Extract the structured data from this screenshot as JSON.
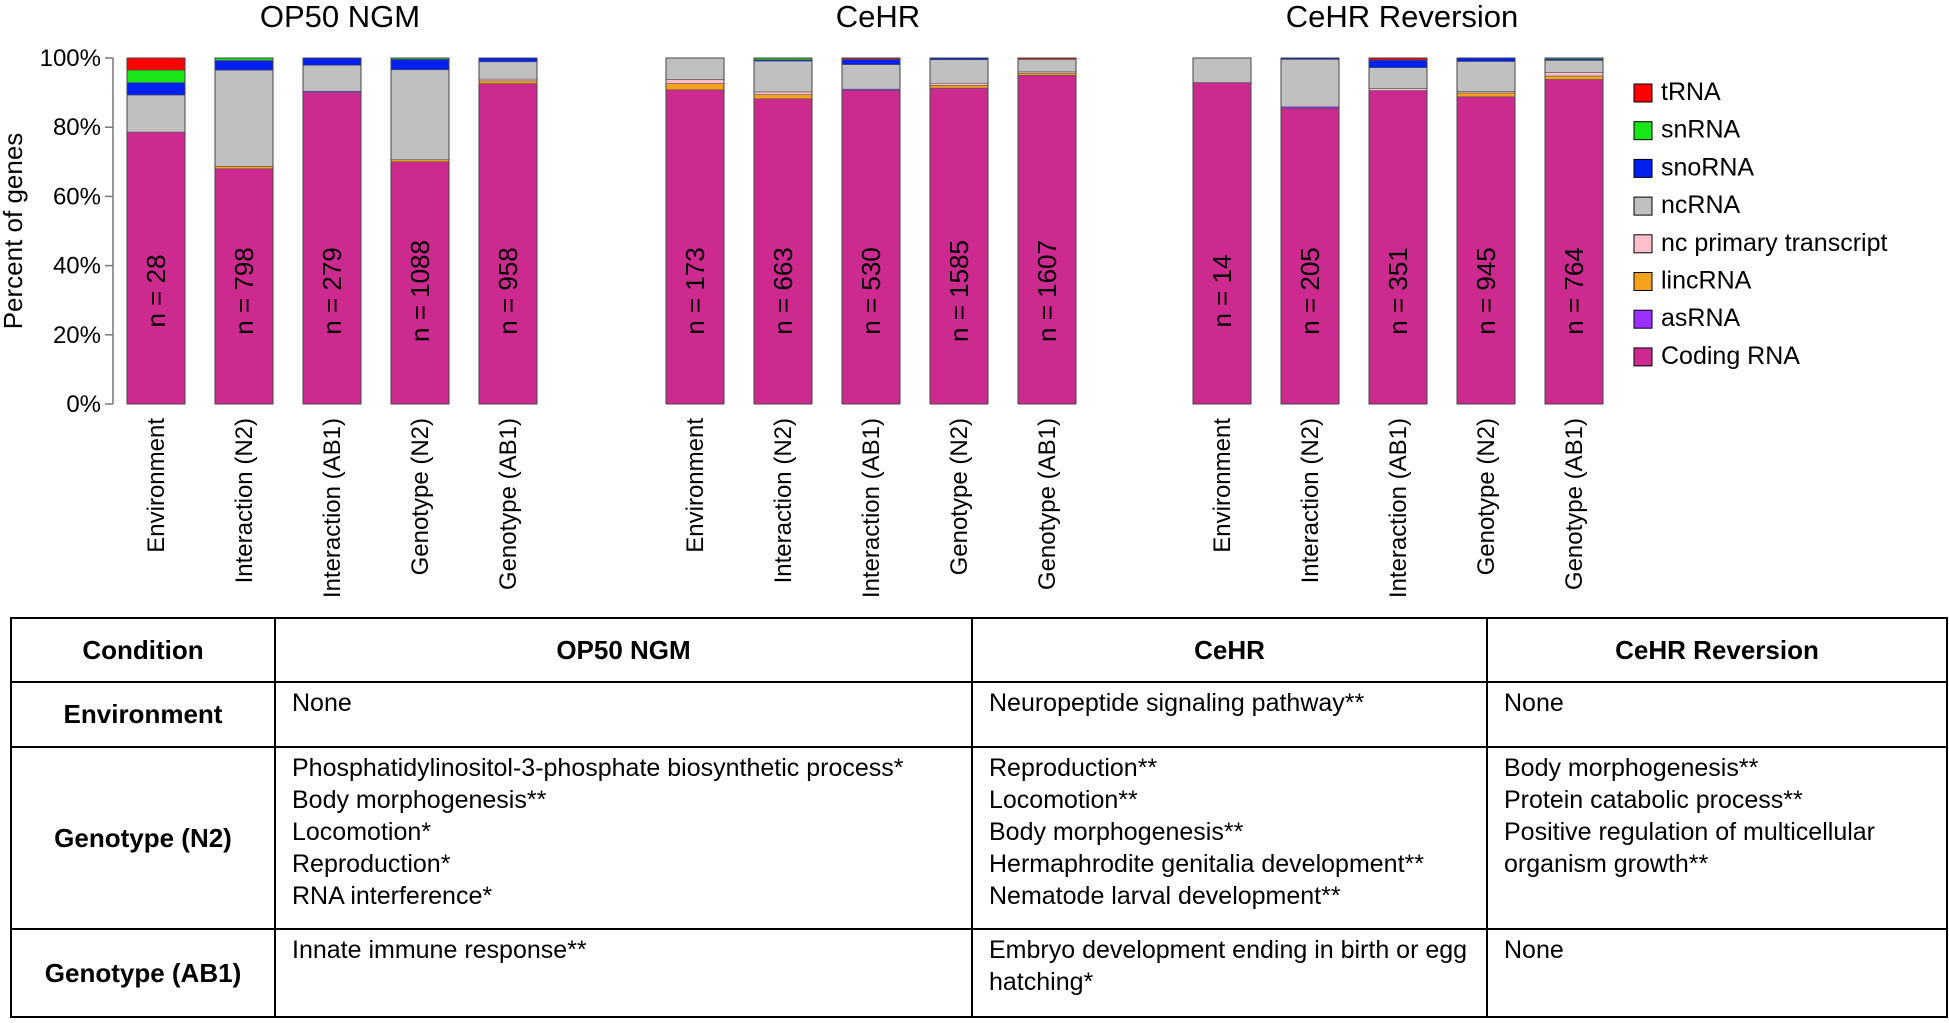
{
  "chart_data": {
    "type": "bar",
    "stacked": true,
    "ylabel": "Percent of genes",
    "ylim": [
      0,
      100
    ],
    "yticks": [
      "0%",
      "20%",
      "40%",
      "60%",
      "80%",
      "100%"
    ],
    "categories": [
      "Environment",
      "Interaction (N2)",
      "Interaction (AB1)",
      "Genotype (N2)",
      "Genotype (AB1)"
    ],
    "legend": [
      {
        "name": "tRNA",
        "color": "#ff0000"
      },
      {
        "name": "snRNA",
        "color": "#19e619"
      },
      {
        "name": "snoRNA",
        "color": "#0020f0"
      },
      {
        "name": "ncRNA",
        "color": "#c0c0c0"
      },
      {
        "name": "nc primary transcript",
        "color": "#ffc0cb"
      },
      {
        "name": "lincRNA",
        "color": "#f7a21c"
      },
      {
        "name": "asRNA",
        "color": "#9b30ff"
      },
      {
        "name": "Coding RNA",
        "color": "#cc2a8f"
      }
    ],
    "stack_order": [
      "Coding RNA",
      "asRNA",
      "lincRNA",
      "nc primary transcript",
      "ncRNA",
      "snoRNA",
      "snRNA",
      "tRNA"
    ],
    "panels": [
      {
        "title": "OP50 NGM",
        "bars": [
          {
            "category": "Environment",
            "n": "n = 28",
            "segments": {
              "Coding RNA": 78.6,
              "ncRNA": 10.7,
              "snoRNA": 3.6,
              "snRNA": 3.6,
              "tRNA": 3.5
            }
          },
          {
            "category": "Interaction (N2)",
            "n": "n = 798",
            "segments": {
              "Coding RNA": 68.0,
              "lincRNA": 0.7,
              "ncRNA": 27.8,
              "snoRNA": 2.8,
              "snRNA": 0.7
            }
          },
          {
            "category": "Interaction (AB1)",
            "n": "n = 279",
            "segments": {
              "Coding RNA": 90.0,
              "asRNA": 0.4,
              "ncRNA": 7.5,
              "snoRNA": 2.1
            }
          },
          {
            "category": "Genotype (N2)",
            "n": "n = 1088",
            "segments": {
              "Coding RNA": 70.0,
              "lincRNA": 0.6,
              "ncRNA": 26.0,
              "snoRNA": 3.0,
              "snRNA": 0.4
            }
          },
          {
            "category": "Genotype (AB1)",
            "n": "n = 958",
            "segments": {
              "Coding RNA": 92.6,
              "lincRNA": 0.8,
              "nc primary transcript": 0.5,
              "ncRNA": 5.0,
              "snoRNA": 1.1
            }
          }
        ]
      },
      {
        "title": "CeHR",
        "bars": [
          {
            "category": "Environment",
            "n": "n = 173",
            "segments": {
              "Coding RNA": 90.8,
              "lincRNA": 1.8,
              "nc primary transcript": 1.2,
              "ncRNA": 6.2
            }
          },
          {
            "category": "Interaction (N2)",
            "n": "n = 663",
            "segments": {
              "Coding RNA": 88.2,
              "lincRNA": 1.2,
              "nc primary transcript": 0.8,
              "ncRNA": 8.9,
              "snoRNA": 0.4,
              "snRNA": 0.5
            }
          },
          {
            "category": "Interaction (AB1)",
            "n": "n = 530",
            "segments": {
              "Coding RNA": 90.6,
              "asRNA": 0.4,
              "ncRNA": 7.1,
              "snoRNA": 1.5,
              "tRNA": 0.4
            }
          },
          {
            "category": "Genotype (N2)",
            "n": "n = 1585",
            "segments": {
              "Coding RNA": 91.3,
              "lincRNA": 0.8,
              "nc primary transcript": 0.6,
              "ncRNA": 6.8,
              "snoRNA": 0.5
            }
          },
          {
            "category": "Genotype (AB1)",
            "n": "n = 1607",
            "segments": {
              "Coding RNA": 95.0,
              "lincRNA": 0.6,
              "nc primary transcript": 0.4,
              "ncRNA": 3.6,
              "tRNA": 0.4
            }
          }
        ]
      },
      {
        "title": "CeHR Reversion",
        "bars": [
          {
            "category": "Environment",
            "n": "n = 14",
            "segments": {
              "Coding RNA": 92.9,
              "ncRNA": 7.1
            }
          },
          {
            "category": "Interaction (N2)",
            "n": "n = 205",
            "segments": {
              "Coding RNA": 85.4,
              "asRNA": 0.5,
              "ncRNA": 13.7,
              "snoRNA": 0.4
            }
          },
          {
            "category": "Interaction (AB1)",
            "n": "n = 351",
            "segments": {
              "Coding RNA": 90.6,
              "nc primary transcript": 0.6,
              "ncRNA": 6.0,
              "snoRNA": 2.2,
              "tRNA": 0.6
            }
          },
          {
            "category": "Genotype (N2)",
            "n": "n = 945",
            "segments": {
              "Coding RNA": 88.8,
              "lincRNA": 1.1,
              "nc primary transcript": 0.4,
              "ncRNA": 8.7,
              "snoRNA": 1.0
            }
          },
          {
            "category": "Genotype (AB1)",
            "n": "n = 764",
            "segments": {
              "Coding RNA": 93.8,
              "lincRNA": 1.0,
              "nc primary transcript": 1.0,
              "ncRNA": 3.5,
              "snoRNA": 0.4,
              "snRNA": 0.3
            }
          }
        ]
      }
    ]
  },
  "table": {
    "headers": [
      "Condition",
      "OP50 NGM",
      "CeHR",
      "CeHR Reversion"
    ],
    "rows": [
      {
        "condition": "Environment",
        "op50": [
          "None"
        ],
        "cehr": [
          "Neuropeptide signaling pathway**"
        ],
        "reversion": [
          "None"
        ]
      },
      {
        "condition": "Genotype (N2)",
        "op50": [
          "Phosphatidylinositol-3-phosphate biosynthetic process*",
          "Body morphogenesis**",
          "Locomotion*",
          "Reproduction*",
          "RNA interference*"
        ],
        "cehr": [
          "Reproduction**",
          "Locomotion**",
          "Body morphogenesis**",
          "Hermaphrodite genitalia development**",
          "Nematode larval development**"
        ],
        "reversion": [
          "Body morphogenesis**",
          "Protein catabolic process**",
          "Positive regulation of multicellular organism growth**"
        ]
      },
      {
        "condition": "Genotype (AB1)",
        "op50": [
          "Innate immune response**"
        ],
        "cehr": [
          "Embryo development ending in birth or egg hatching*"
        ],
        "reversion": [
          "None"
        ]
      }
    ]
  }
}
